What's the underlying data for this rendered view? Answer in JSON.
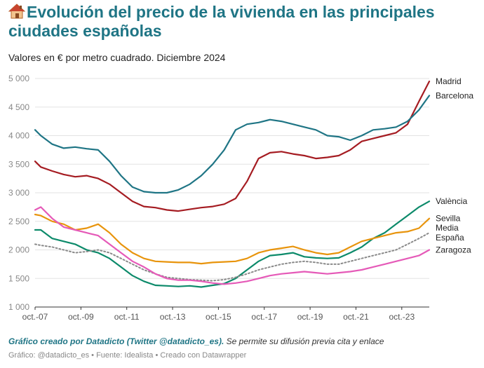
{
  "title": "Evolución del precio de la vivienda en las principales ciudades españolas",
  "icon": "house-icon",
  "subtitle": "Valores en € por metro cuadrado. Diciembre 2024",
  "footer": {
    "credit": "Gráfico creado por Datadicto (Twitter @datadicto_es).",
    "note": "Se permite su difusión previa cita y enlace",
    "meta": "Gráfico: @datadicto_es • Fuente: Idealista • Creado con Datawrapper"
  },
  "chart_data": {
    "type": "line",
    "title": "Evolución del precio de la vivienda en las principales ciudades españolas",
    "subtitle": "Valores en € por metro cuadrado. Diciembre 2024",
    "xlabel": "",
    "ylabel": "",
    "grid": true,
    "x_ticks": [
      "oct.-07",
      "oct.-09",
      "oct.-11",
      "oct.-13",
      "oct.-15",
      "oct.-17",
      "oct.-19",
      "oct.-21",
      "oct.-23"
    ],
    "y_ticks": [
      1000,
      1500,
      2000,
      2500,
      3000,
      3500,
      4000,
      4500,
      5000
    ],
    "y_tick_labels": [
      "1 000",
      "1 500",
      "2 000",
      "2 500",
      "3 000",
      "3 500",
      "4 000",
      "4 500",
      "5 000"
    ],
    "xlim": [
      2007.75,
      2024.95
    ],
    "ylim": [
      1000,
      5000
    ],
    "x": [
      2007.75,
      2008.0,
      2008.5,
      2009.0,
      2009.5,
      2010.0,
      2010.5,
      2011.0,
      2011.5,
      2012.0,
      2012.5,
      2013.0,
      2013.5,
      2014.0,
      2014.5,
      2015.0,
      2015.5,
      2016.0,
      2016.5,
      2017.0,
      2017.5,
      2018.0,
      2018.5,
      2019.0,
      2019.5,
      2020.0,
      2020.5,
      2021.0,
      2021.5,
      2022.0,
      2022.5,
      2023.0,
      2023.5,
      2024.0,
      2024.5,
      2024.95
    ],
    "series": [
      {
        "name": "Madrid",
        "color": "#a51c22",
        "dashed": false,
        "values": [
          3550,
          3450,
          3380,
          3320,
          3280,
          3300,
          3250,
          3150,
          3000,
          2850,
          2760,
          2740,
          2700,
          2680,
          2710,
          2740,
          2760,
          2800,
          2900,
          3200,
          3600,
          3700,
          3720,
          3680,
          3650,
          3600,
          3620,
          3650,
          3750,
          3900,
          3950,
          4000,
          4050,
          4200,
          4600,
          4950
        ]
      },
      {
        "name": "Barcelona",
        "color": "#1f7585",
        "dashed": false,
        "values": [
          4100,
          4000,
          3850,
          3780,
          3800,
          3770,
          3750,
          3550,
          3300,
          3100,
          3020,
          3000,
          3000,
          3050,
          3150,
          3300,
          3500,
          3750,
          4100,
          4200,
          4230,
          4280,
          4250,
          4200,
          4150,
          4100,
          4000,
          3980,
          3920,
          4000,
          4100,
          4120,
          4150,
          4250,
          4450,
          4700
        ]
      },
      {
        "name": "València",
        "color": "#0c8a6a",
        "dashed": false,
        "values": [
          2350,
          2350,
          2200,
          2150,
          2100,
          2000,
          1950,
          1850,
          1700,
          1550,
          1450,
          1380,
          1370,
          1360,
          1370,
          1350,
          1380,
          1410,
          1500,
          1650,
          1800,
          1900,
          1920,
          1950,
          1880,
          1860,
          1850,
          1860,
          1950,
          2050,
          2200,
          2300,
          2450,
          2600,
          2750,
          2850
        ]
      },
      {
        "name": "Sevilla",
        "color": "#e8940c",
        "dashed": false,
        "values": [
          2620,
          2600,
          2500,
          2450,
          2350,
          2380,
          2450,
          2300,
          2100,
          1950,
          1850,
          1800,
          1790,
          1780,
          1780,
          1760,
          1780,
          1790,
          1800,
          1850,
          1950,
          2000,
          2030,
          2060,
          2000,
          1950,
          1920,
          1950,
          2050,
          2150,
          2200,
          2250,
          2300,
          2320,
          2380,
          2550
        ]
      },
      {
        "name": "Media España",
        "color": "#8a8a8a",
        "dashed": true,
        "values": [
          2100,
          2080,
          2050,
          2000,
          1950,
          1970,
          2000,
          1950,
          1850,
          1750,
          1650,
          1580,
          1520,
          1500,
          1480,
          1470,
          1460,
          1480,
          1520,
          1580,
          1650,
          1700,
          1750,
          1780,
          1800,
          1780,
          1750,
          1750,
          1800,
          1850,
          1900,
          1950,
          2000,
          2100,
          2200,
          2300
        ]
      },
      {
        "name": "Zaragoza",
        "color": "#e55ab8",
        "dashed": false,
        "values": [
          2700,
          2750,
          2550,
          2400,
          2350,
          2300,
          2250,
          2100,
          1950,
          1800,
          1700,
          1580,
          1500,
          1470,
          1470,
          1450,
          1420,
          1400,
          1420,
          1450,
          1500,
          1550,
          1580,
          1600,
          1620,
          1600,
          1580,
          1600,
          1620,
          1650,
          1700,
          1750,
          1800,
          1850,
          1900,
          2000
        ]
      }
    ]
  }
}
